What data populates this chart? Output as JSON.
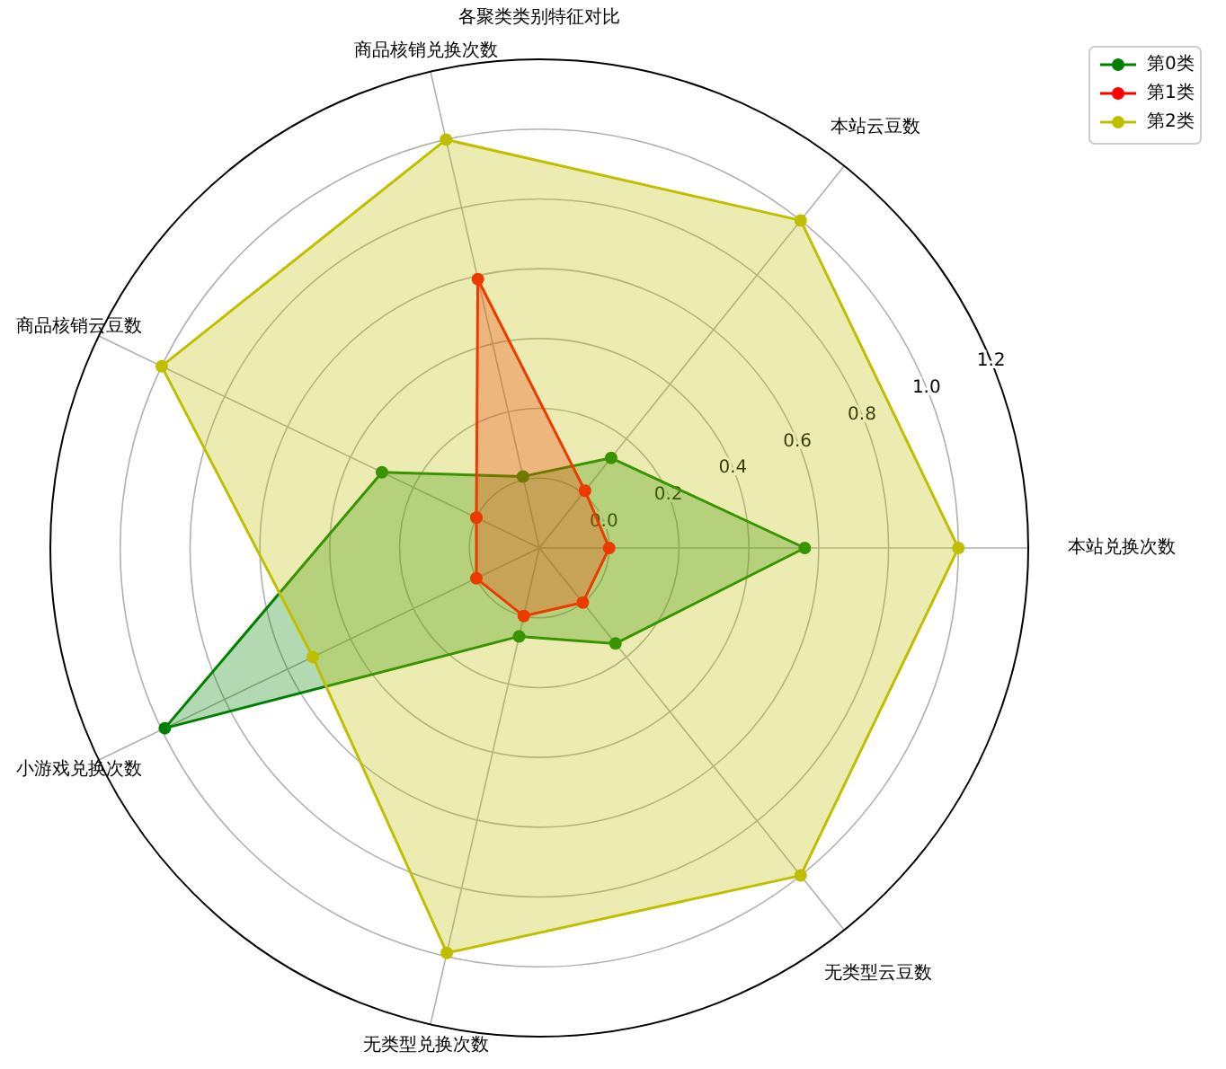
{
  "chart_data": {
    "type": "radar",
    "title": "各聚类类别特征对比",
    "categories": [
      "商品核销兑换次数",
      "本站云豆数",
      "本站兑换次数",
      "无类型云豆数",
      "无类型兑换次数",
      "小游戏兑换次数",
      "商品核销云豆数"
    ],
    "series": [
      {
        "name": "第0类",
        "color": "#008000",
        "values": [
          0.01,
          0.13,
          0.56,
          0.15,
          0.06,
          0.99,
          0.3
        ]
      },
      {
        "name": "第1类",
        "color": "#ff0000",
        "values": [
          0.59,
          0.01,
          0.0,
          0.0,
          0.0,
          0.0,
          0.0
        ]
      },
      {
        "name": "第2类",
        "color": "#bfbf00",
        "values": [
          1.0,
          1.0,
          1.0,
          1.0,
          0.99,
          0.52,
          1.0
        ]
      }
    ],
    "ylim": [
      -0.2,
      1.2
    ],
    "yticks": [
      {
        "value": 0,
        "label": "0.0"
      },
      0.2,
      0.4,
      0.6,
      0.8,
      {
        "value": 1,
        "label": "1.0"
      },
      1.2
    ],
    "grid": true,
    "legend": "top right",
    "marker": "circle",
    "line_style": "solid"
  }
}
